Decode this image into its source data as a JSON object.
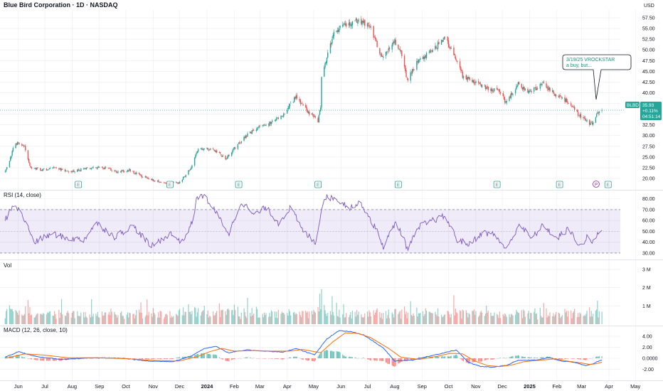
{
  "header": {
    "title": "Blue Bird Corporation · 1D · NASDAQ",
    "currency": "USD"
  },
  "colors": {
    "up": "#26a69a",
    "down": "#ef5350",
    "rsi_line": "#7e57c2",
    "rsi_band": "#7e57c2",
    "macd_line": "#2962ff",
    "signal_line": "#ff6d00",
    "grid": "#e9ecf0"
  },
  "price_tag": {
    "symbol": "BLBD",
    "price": "35.93",
    "change": "+0.11%",
    "countdown": "04:51:14"
  },
  "note": {
    "line1": "3/19/25 VROCKSTAR",
    "line2": "a buy, but..."
  },
  "event_markers": [
    "E",
    "E",
    "E",
    "E",
    "E",
    "E",
    "E",
    "E",
    "P"
  ],
  "chart_data": [
    {
      "type": "candlestick",
      "title": "Blue Bird Corporation · 1D · NASDAQ",
      "y_axis_label": "USD",
      "y_ticks": [
        20.0,
        22.5,
        25.0,
        27.5,
        30.0,
        32.5,
        35.0,
        37.5,
        40.0,
        42.5,
        45.0,
        47.5,
        50.0,
        52.5,
        55.0,
        57.5
      ],
      "ylim": [
        18.5,
        59.0
      ],
      "x_ticks": [
        "Jun",
        "Jul",
        "Aug",
        "Sep",
        "Oct",
        "Nov",
        "Dec",
        "2024",
        "Feb",
        "Mar",
        "Apr",
        "May",
        "Jun",
        "Jul",
        "Aug",
        "Sep",
        "Oct",
        "Nov",
        "Dec",
        "2025",
        "Feb",
        "Mar",
        "Apr",
        "May"
      ],
      "x_ticks_bold": [
        "2024",
        "2025"
      ],
      "close_path": [
        [
          "2023-05-17",
          21.5
        ],
        [
          "2023-05-22",
          24.0
        ],
        [
          "2023-05-26",
          27.0
        ],
        [
          "2023-06-01",
          28.5
        ],
        [
          "2023-06-08",
          27.5
        ],
        [
          "2023-06-15",
          22.5
        ],
        [
          "2023-06-29",
          22.0
        ],
        [
          "2023-07-13",
          22.5
        ],
        [
          "2023-07-27",
          21.5
        ],
        [
          "2023-08-10",
          22.0
        ],
        [
          "2023-08-24",
          22.5
        ],
        [
          "2023-09-07",
          22.5
        ],
        [
          "2023-09-21",
          21.5
        ],
        [
          "2023-10-05",
          22.0
        ],
        [
          "2023-10-19",
          20.5
        ],
        [
          "2023-11-02",
          19.5
        ],
        [
          "2023-11-16",
          19.0
        ],
        [
          "2023-11-30",
          19.0
        ],
        [
          "2023-12-07",
          20.5
        ],
        [
          "2023-12-14",
          22.5
        ],
        [
          "2023-12-21",
          26.5
        ],
        [
          "2023-12-28",
          27.0
        ],
        [
          "2024-01-11",
          26.5
        ],
        [
          "2024-01-22",
          24.5
        ],
        [
          "2024-02-01",
          27.0
        ],
        [
          "2024-02-15",
          30.0
        ],
        [
          "2024-02-29",
          32.0
        ],
        [
          "2024-03-14",
          33.0
        ],
        [
          "2024-03-28",
          35.0
        ],
        [
          "2024-04-11",
          39.0
        ],
        [
          "2024-04-25",
          35.5
        ],
        [
          "2024-05-06",
          33.5
        ],
        [
          "2024-05-09",
          37.0
        ],
        [
          "2024-05-10",
          43.5
        ],
        [
          "2024-05-17",
          49.0
        ],
        [
          "2024-05-24",
          54.0
        ],
        [
          "2024-06-07",
          56.0
        ],
        [
          "2024-06-21",
          57.0
        ],
        [
          "2024-07-05",
          55.0
        ],
        [
          "2024-07-18",
          48.0
        ],
        [
          "2024-08-01",
          52.0
        ],
        [
          "2024-08-08",
          49.5
        ],
        [
          "2024-08-15",
          43.0
        ],
        [
          "2024-08-29",
          48.0
        ],
        [
          "2024-09-12",
          49.5
        ],
        [
          "2024-09-26",
          53.0
        ],
        [
          "2024-10-10",
          48.0
        ],
        [
          "2024-10-17",
          44.0
        ],
        [
          "2024-10-31",
          42.5
        ],
        [
          "2024-11-14",
          41.0
        ],
        [
          "2024-11-28",
          40.5
        ],
        [
          "2024-12-05",
          37.5
        ],
        [
          "2024-12-19",
          42.0
        ],
        [
          "2025-01-02",
          40.0
        ],
        [
          "2025-01-16",
          42.5
        ],
        [
          "2025-01-30",
          39.5
        ],
        [
          "2025-02-13",
          38.0
        ],
        [
          "2025-02-27",
          34.5
        ],
        [
          "2025-03-06",
          33.5
        ],
        [
          "2025-03-13",
          32.5
        ],
        [
          "2025-03-17",
          34.5
        ],
        [
          "2025-03-20",
          35.5
        ],
        [
          "2025-03-24",
          35.93
        ]
      ],
      "last_close": 35.93
    },
    {
      "type": "line",
      "title": "RSI (14, close)",
      "y_ticks": [
        30.0,
        40.0,
        50.0,
        60.0,
        70.0,
        80.0
      ],
      "ylim": [
        26,
        85
      ],
      "band": [
        30,
        70
      ],
      "reference_lines": [
        30,
        50,
        70
      ],
      "points": [
        [
          "2023-05-17",
          60
        ],
        [
          "2023-05-26",
          75
        ],
        [
          "2023-06-05",
          66
        ],
        [
          "2023-06-19",
          40
        ],
        [
          "2023-07-10",
          48
        ],
        [
          "2023-07-24",
          44
        ],
        [
          "2023-08-14",
          42
        ],
        [
          "2023-08-28",
          58
        ],
        [
          "2023-09-18",
          45
        ],
        [
          "2023-10-09",
          55
        ],
        [
          "2023-10-30",
          36
        ],
        [
          "2023-11-20",
          48
        ],
        [
          "2023-12-04",
          40
        ],
        [
          "2023-12-15",
          58
        ],
        [
          "2023-12-21",
          82
        ],
        [
          "2023-12-29",
          83
        ],
        [
          "2024-01-12",
          66
        ],
        [
          "2024-01-26",
          48
        ],
        [
          "2024-02-09",
          78
        ],
        [
          "2024-02-23",
          65
        ],
        [
          "2024-03-08",
          72
        ],
        [
          "2024-03-22",
          58
        ],
        [
          "2024-04-05",
          72
        ],
        [
          "2024-04-19",
          50
        ],
        [
          "2024-05-03",
          40
        ],
        [
          "2024-05-13",
          82
        ],
        [
          "2024-05-27",
          80
        ],
        [
          "2024-06-10",
          72
        ],
        [
          "2024-06-24",
          76
        ],
        [
          "2024-07-12",
          50
        ],
        [
          "2024-07-19",
          36
        ],
        [
          "2024-08-02",
          58
        ],
        [
          "2024-08-09",
          48
        ],
        [
          "2024-08-15",
          34
        ],
        [
          "2024-08-30",
          55
        ],
        [
          "2024-09-13",
          60
        ],
        [
          "2024-09-27",
          64
        ],
        [
          "2024-10-11",
          42
        ],
        [
          "2024-10-25",
          38
        ],
        [
          "2024-11-08",
          49
        ],
        [
          "2024-11-22",
          47
        ],
        [
          "2024-12-06",
          33
        ],
        [
          "2024-12-20",
          57
        ],
        [
          "2025-01-03",
          43
        ],
        [
          "2025-01-17",
          56
        ],
        [
          "2025-01-31",
          43
        ],
        [
          "2025-02-14",
          52
        ],
        [
          "2025-02-28",
          36
        ],
        [
          "2025-03-07",
          44
        ],
        [
          "2025-03-14",
          40
        ],
        [
          "2025-03-24",
          53
        ]
      ]
    },
    {
      "type": "bar",
      "title": "Vol",
      "y_ticks": [
        "1 M",
        "2 M",
        "3 M"
      ],
      "ylim": [
        0,
        3.35
      ],
      "unit": "M shares"
    },
    {
      "type": "line",
      "title": "MACD (12, 26, close, 10)",
      "y_ticks": [
        -2.0,
        0.0,
        2.0,
        4.0
      ],
      "ylim": [
        -3.6,
        5.4
      ],
      "series": [
        {
          "role": "macd",
          "points": [
            [
              "2023-05-17",
              0.2
            ],
            [
              "2023-06-01",
              1.2
            ],
            [
              "2023-06-22",
              0.3
            ],
            [
              "2023-07-20",
              -0.2
            ],
            [
              "2023-08-24",
              0.1
            ],
            [
              "2023-09-28",
              0.0
            ],
            [
              "2023-10-26",
              -0.5
            ],
            [
              "2023-11-23",
              -0.6
            ],
            [
              "2023-12-14",
              0.4
            ],
            [
              "2023-12-28",
              1.7
            ],
            [
              "2024-01-11",
              2.2
            ],
            [
              "2024-01-25",
              1.0
            ],
            [
              "2024-02-15",
              1.5
            ],
            [
              "2024-03-07",
              1.3
            ],
            [
              "2024-03-28",
              1.1
            ],
            [
              "2024-04-11",
              1.8
            ],
            [
              "2024-05-02",
              0.6
            ],
            [
              "2024-05-16",
              3.5
            ],
            [
              "2024-05-30",
              5.0
            ],
            [
              "2024-06-13",
              4.8
            ],
            [
              "2024-06-27",
              4.2
            ],
            [
              "2024-07-18",
              2.0
            ],
            [
              "2024-08-01",
              -0.5
            ],
            [
              "2024-08-22",
              -0.3
            ],
            [
              "2024-09-12",
              0.5
            ],
            [
              "2024-09-26",
              1.0
            ],
            [
              "2024-10-10",
              1.5
            ],
            [
              "2024-10-24",
              -0.8
            ],
            [
              "2024-11-07",
              -1.5
            ],
            [
              "2024-11-21",
              -1.6
            ],
            [
              "2024-12-05",
              -1.3
            ],
            [
              "2024-12-19",
              -0.4
            ],
            [
              "2025-01-09",
              -0.3
            ],
            [
              "2025-01-23",
              0.1
            ],
            [
              "2025-02-06",
              -0.5
            ],
            [
              "2025-02-20",
              -0.7
            ],
            [
              "2025-03-06",
              -1.3
            ],
            [
              "2025-03-13",
              -1.0
            ],
            [
              "2025-03-24",
              -0.3
            ]
          ]
        },
        {
          "role": "signal",
          "points": [
            [
              "2023-05-17",
              0.0
            ],
            [
              "2023-06-08",
              0.8
            ],
            [
              "2023-06-29",
              0.6
            ],
            [
              "2023-07-27",
              0.1
            ],
            [
              "2023-08-31",
              0.1
            ],
            [
              "2023-10-05",
              -0.1
            ],
            [
              "2023-11-02",
              -0.4
            ],
            [
              "2023-11-30",
              -0.5
            ],
            [
              "2023-12-21",
              0.3
            ],
            [
              "2024-01-04",
              1.2
            ],
            [
              "2024-01-18",
              1.8
            ],
            [
              "2024-02-01",
              1.3
            ],
            [
              "2024-02-22",
              1.4
            ],
            [
              "2024-03-14",
              1.3
            ],
            [
              "2024-04-04",
              1.3
            ],
            [
              "2024-04-18",
              1.6
            ],
            [
              "2024-05-09",
              1.0
            ],
            [
              "2024-05-23",
              3.0
            ],
            [
              "2024-06-06",
              4.6
            ],
            [
              "2024-06-20",
              4.5
            ],
            [
              "2024-07-04",
              3.8
            ],
            [
              "2024-07-25",
              1.8
            ],
            [
              "2024-08-08",
              0.2
            ],
            [
              "2024-08-29",
              -0.2
            ],
            [
              "2024-09-19",
              0.4
            ],
            [
              "2024-10-03",
              0.9
            ],
            [
              "2024-10-17",
              0.8
            ],
            [
              "2024-10-31",
              -0.5
            ],
            [
              "2024-11-14",
              -1.3
            ],
            [
              "2024-11-28",
              -1.5
            ],
            [
              "2024-12-12",
              -1.2
            ],
            [
              "2024-12-26",
              -0.6
            ],
            [
              "2025-01-16",
              -0.3
            ],
            [
              "2025-01-30",
              -0.1
            ],
            [
              "2025-02-13",
              -0.5
            ],
            [
              "2025-02-27",
              -0.8
            ],
            [
              "2025-03-10",
              -1.1
            ],
            [
              "2025-03-17",
              -1.0
            ],
            [
              "2025-03-24",
              -0.7
            ]
          ]
        }
      ]
    }
  ]
}
